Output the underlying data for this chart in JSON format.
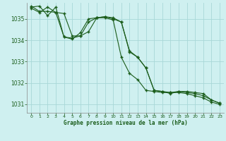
{
  "background_color": "#cff0f0",
  "grid_color": "#a8d8d8",
  "line_color": "#1a5c1a",
  "xlabel": "Graphe pression niveau de la mer (hPa)",
  "ylim": [
    1030.6,
    1035.75
  ],
  "yticks": [
    1031,
    1032,
    1033,
    1034,
    1035
  ],
  "xlim": [
    -0.5,
    23.5
  ],
  "xticks": [
    0,
    1,
    2,
    3,
    4,
    5,
    6,
    7,
    8,
    9,
    10,
    11,
    12,
    13,
    14,
    15,
    16,
    17,
    18,
    19,
    20,
    21,
    22,
    23
  ],
  "series": [
    [
      1035.55,
      1035.6,
      1035.15,
      1035.55,
      1034.15,
      1034.1,
      1034.2,
      1034.85,
      1035.05,
      1035.1,
      1035.05,
      1034.85,
      1033.5,
      1033.2,
      1032.7,
      1031.65,
      1031.6,
      1031.55,
      1031.6,
      1031.6,
      1031.55,
      1031.5,
      1031.2,
      1031.05
    ],
    [
      1035.6,
      1035.35,
      1035.35,
      1035.3,
      1035.25,
      1034.2,
      1034.2,
      1034.4,
      1035.05,
      1035.1,
      1035.0,
      1034.85,
      1033.45,
      1033.2,
      1032.7,
      1031.65,
      1031.6,
      1031.5,
      1031.6,
      1031.55,
      1031.5,
      1031.4,
      1031.2,
      1031.05
    ],
    [
      1035.5,
      1035.3,
      1035.55,
      1035.3,
      1034.15,
      1034.05,
      1034.35,
      1035.0,
      1035.05,
      1035.05,
      1034.95,
      1033.2,
      1032.45,
      1032.15,
      1031.65,
      1031.6,
      1031.55,
      1031.55,
      1031.55,
      1031.5,
      1031.4,
      1031.3,
      1031.1,
      1031.0
    ]
  ]
}
